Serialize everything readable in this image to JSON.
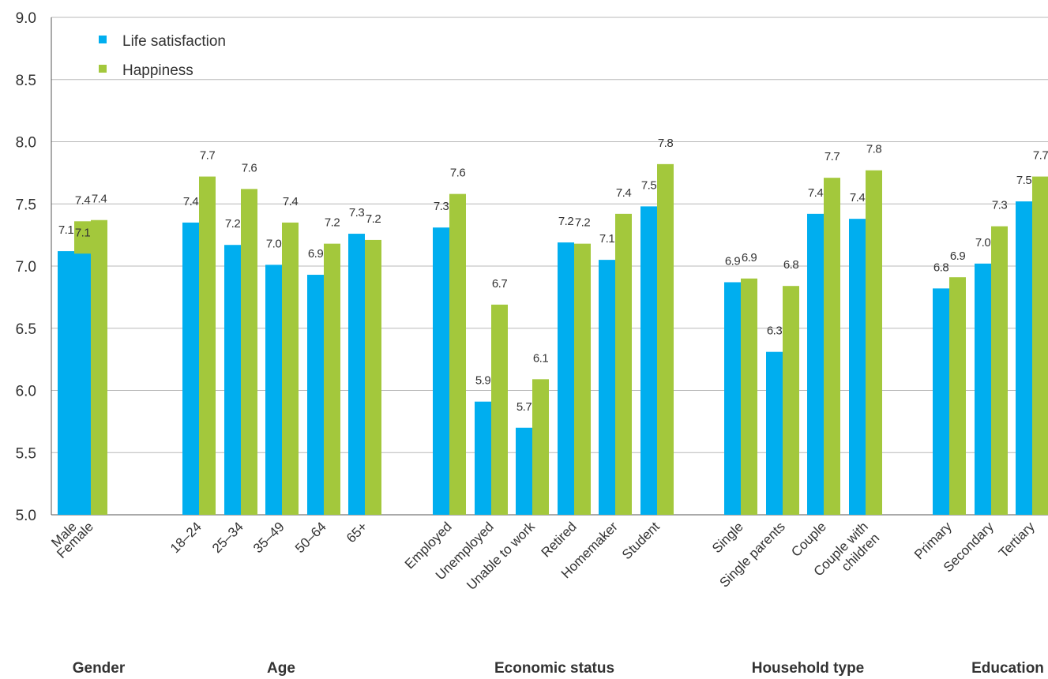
{
  "chart_data": {
    "type": "bar",
    "title": "",
    "xlabel": "",
    "ylabel": "",
    "ylim": [
      5.0,
      9.0
    ],
    "yticks": [
      "5.0",
      "5.5",
      "6.0",
      "6.5",
      "7.0",
      "7.5",
      "8.0",
      "8.5",
      "9.0"
    ],
    "grid": true,
    "legend_position": "top-left",
    "series": [
      {
        "name": "Life satisfaction",
        "color": "#00aeef"
      },
      {
        "name": "Happiness",
        "color": "#a3c83c"
      }
    ],
    "groups": [
      {
        "label": "Gender",
        "categories": [
          {
            "label": "Male",
            "values": [
              7.12,
              7.36
            ],
            "labels": [
              "7.1",
              "7.4"
            ]
          },
          {
            "label": "Female",
            "values": [
              7.1,
              7.37
            ],
            "labels": [
              "7.1",
              "7.4"
            ]
          }
        ]
      },
      {
        "label": "Age",
        "categories": [
          {
            "label": "18–24",
            "values": [
              7.35,
              7.72
            ],
            "labels": [
              "7.4",
              "7.7"
            ]
          },
          {
            "label": "25–34",
            "values": [
              7.17,
              7.62
            ],
            "labels": [
              "7.2",
              "7.6"
            ]
          },
          {
            "label": "35–49",
            "values": [
              7.01,
              7.35
            ],
            "labels": [
              "7.0",
              "7.4"
            ]
          },
          {
            "label": "50–64",
            "values": [
              6.93,
              7.18
            ],
            "labels": [
              "6.9",
              "7.2"
            ]
          },
          {
            "label": "65+",
            "values": [
              7.26,
              7.21
            ],
            "labels": [
              "7.3",
              "7.2"
            ]
          }
        ]
      },
      {
        "label": "Economic status",
        "categories": [
          {
            "label": "Employed",
            "values": [
              7.31,
              7.58
            ],
            "labels": [
              "7.3",
              "7.6"
            ]
          },
          {
            "label": "Unemployed",
            "values": [
              5.91,
              6.69
            ],
            "labels": [
              "5.9",
              "6.7"
            ]
          },
          {
            "label": "Unable to work",
            "values": [
              5.7,
              6.09
            ],
            "labels": [
              "5.7",
              "6.1"
            ]
          },
          {
            "label": "Retired",
            "values": [
              7.19,
              7.18
            ],
            "labels": [
              "7.2",
              "7.2"
            ]
          },
          {
            "label": "Homemaker",
            "values": [
              7.05,
              7.42
            ],
            "labels": [
              "7.1",
              "7.4"
            ]
          },
          {
            "label": "Student",
            "values": [
              7.48,
              7.82
            ],
            "labels": [
              "7.5",
              "7.8"
            ]
          }
        ]
      },
      {
        "label": "Household type",
        "categories": [
          {
            "label": "Single",
            "values": [
              6.87,
              6.9
            ],
            "labels": [
              "6.9",
              "6.9"
            ]
          },
          {
            "label": "Single parents",
            "values": [
              6.31,
              6.84
            ],
            "labels": [
              "6.3",
              "6.8"
            ]
          },
          {
            "label": "Couple",
            "values": [
              7.42,
              7.71
            ],
            "labels": [
              "7.4",
              "7.7"
            ]
          },
          {
            "label": "Couple with children",
            "label_lines": [
              "Couple with",
              "children"
            ],
            "values": [
              7.38,
              7.77
            ],
            "labels": [
              "7.4",
              "7.8"
            ]
          }
        ]
      },
      {
        "label": "Education",
        "categories": [
          {
            "label": "Primary",
            "values": [
              6.82,
              6.91
            ],
            "labels": [
              "6.8",
              "6.9"
            ]
          },
          {
            "label": "Secondary",
            "values": [
              7.02,
              7.32
            ],
            "labels": [
              "7.0",
              "7.3"
            ]
          },
          {
            "label": "Tertiary",
            "values": [
              7.52,
              7.72
            ],
            "labels": [
              "7.5",
              "7.7"
            ]
          }
        ]
      }
    ]
  }
}
